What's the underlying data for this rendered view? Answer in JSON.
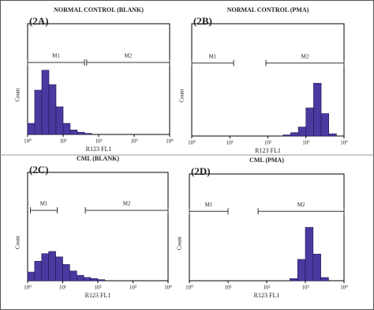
{
  "chart_data": [
    {
      "type": "histogram",
      "panel": "(2A)",
      "title": "NORMAL CONTROL (BLANK)",
      "x_label": "R123 FL1",
      "y_label": "Count",
      "log_x": true,
      "color": "#4a3aa0",
      "bins": [
        1,
        1.58,
        2.51,
        3.98,
        6.31,
        10,
        15.8,
        25.1,
        39.8,
        63.1,
        100,
        158,
        251,
        398,
        631,
        1000,
        1585,
        2512,
        3981,
        6310,
        10000
      ],
      "values": [
        10,
        40,
        58,
        45,
        25,
        10,
        4,
        2,
        1,
        0,
        0,
        0,
        0,
        0,
        0,
        0,
        0,
        0,
        0,
        0
      ],
      "xlim": [
        1,
        10000
      ],
      "ylim": [
        0,
        100
      ],
      "xticks": [
        {
          "value": 1,
          "label": "10⁰"
        },
        {
          "value": 10,
          "label": "10¹"
        },
        {
          "value": 100,
          "label": "10²"
        },
        {
          "value": 1000,
          "label": "10³"
        },
        {
          "value": 10000,
          "label": "10⁴"
        }
      ],
      "gates": [
        {
          "label": "M1",
          "range": [
            1,
            40
          ]
        },
        {
          "label": "M2",
          "range": [
            46,
            10000
          ]
        }
      ]
    },
    {
      "type": "histogram",
      "panel": "(2B)",
      "title": "NORMAL CONTROL (PMA)",
      "x_label": "R123 FL1",
      "y_label": "Count",
      "log_x": true,
      "color": "#4a3aa0",
      "bins": [
        1,
        1.58,
        2.51,
        3.98,
        6.31,
        10,
        15.8,
        25.1,
        39.8,
        63.1,
        100,
        158,
        251,
        398,
        631,
        1000,
        1585,
        2512,
        3981,
        6310,
        10000
      ],
      "values": [
        0,
        0,
        0,
        0,
        0,
        0,
        0,
        0,
        0,
        0,
        0,
        0,
        1,
        3,
        8,
        25,
        47,
        20,
        2,
        0
      ],
      "xlim": [
        1,
        10000
      ],
      "ylim": [
        0,
        100
      ],
      "xticks": [
        {
          "value": 1,
          "label": "10⁰"
        },
        {
          "value": 10,
          "label": "10¹"
        },
        {
          "value": 100,
          "label": "10²"
        },
        {
          "value": 1000,
          "label": "10³"
        },
        {
          "value": 10000,
          "label": "10⁴"
        }
      ],
      "gates": [
        {
          "label": "M1",
          "range": [
            1,
            12.6
          ]
        },
        {
          "label": "M2",
          "range": [
            89,
            10000
          ]
        }
      ]
    },
    {
      "type": "histogram",
      "panel": "(2C)",
      "title": "CML (BLANK)",
      "x_label": "R123 FL1",
      "y_label": "Count",
      "log_x": true,
      "color": "#4a3aa0",
      "bins": [
        1,
        1.58,
        2.51,
        3.98,
        6.31,
        10,
        15.8,
        25.1,
        39.8,
        63.1,
        100,
        158,
        251,
        398,
        631,
        1000,
        1585,
        2512,
        3981,
        6310,
        10000
      ],
      "values": [
        8,
        18,
        25,
        27,
        22,
        15,
        9,
        5,
        3,
        2,
        1,
        0,
        0,
        0,
        0,
        0,
        0,
        0,
        0,
        0
      ],
      "xlim": [
        1,
        10000
      ],
      "ylim": [
        0,
        100
      ],
      "xticks": [
        {
          "value": 1,
          "label": "10⁰"
        },
        {
          "value": 10,
          "label": "10¹"
        },
        {
          "value": 100,
          "label": "10²"
        },
        {
          "value": 1000,
          "label": "10³"
        },
        {
          "value": 10000,
          "label": "10⁴"
        }
      ],
      "gates": [
        {
          "label": "M1",
          "range": [
            1.2,
            7
          ]
        },
        {
          "label": "M2",
          "range": [
            44,
            10000
          ]
        }
      ]
    },
    {
      "type": "histogram",
      "panel": "(2D)",
      "title": "CML (PMA)",
      "x_label": "R123 FL1",
      "y_label": "Count",
      "log_x": true,
      "color": "#4a3aa0",
      "bins": [
        1,
        1.58,
        2.51,
        3.98,
        6.31,
        10,
        15.8,
        25.1,
        39.8,
        63.1,
        100,
        158,
        251,
        398,
        631,
        1000,
        1585,
        2512,
        3981,
        6310,
        10000
      ],
      "values": [
        0,
        0,
        0,
        0,
        0,
        0,
        0,
        0,
        0,
        0,
        0,
        0,
        0,
        2,
        20,
        50,
        25,
        3,
        0,
        0
      ],
      "xlim": [
        1,
        10000
      ],
      "ylim": [
        0,
        100
      ],
      "xticks": [
        {
          "value": 1,
          "label": "10⁰"
        },
        {
          "value": 10,
          "label": "10¹"
        },
        {
          "value": 100,
          "label": "10²"
        },
        {
          "value": 1000,
          "label": "10³"
        },
        {
          "value": 10000,
          "label": "10⁴"
        }
      ],
      "gates": [
        {
          "label": "M1",
          "range": [
            1,
            10
          ]
        },
        {
          "label": "M2",
          "range": [
            60,
            10000
          ]
        }
      ]
    }
  ]
}
